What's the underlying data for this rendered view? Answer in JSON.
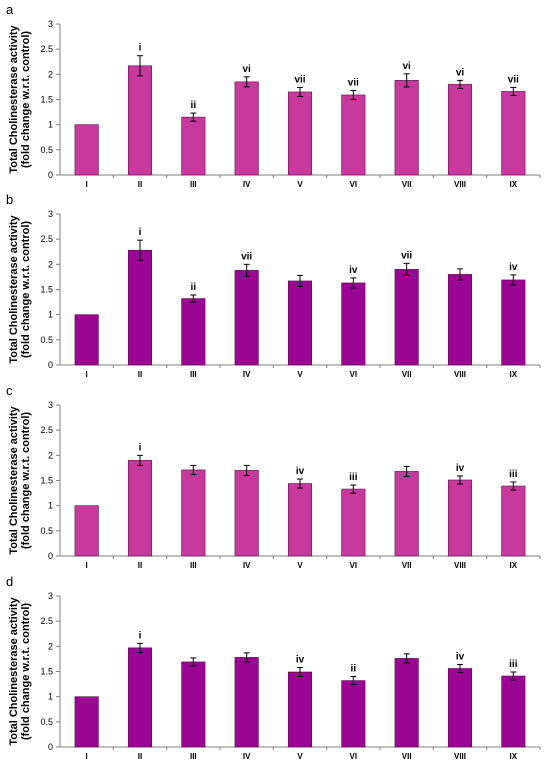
{
  "chart_data": [
    {
      "panel": "a",
      "type": "bar",
      "color": "#c8399d",
      "ylabel_lines": [
        "Total Cholinesterase activity",
        "(fold change w.r.t. control)"
      ],
      "ylim": [
        0,
        3
      ],
      "yticks": [
        "0",
        "0.5",
        "1",
        "1.5",
        "2",
        "2.5",
        "3"
      ],
      "categories": [
        "I",
        "II",
        "III",
        "IV",
        "V",
        "VI",
        "VII",
        "VIII",
        "IX"
      ],
      "values": [
        1.0,
        2.17,
        1.15,
        1.85,
        1.65,
        1.59,
        1.88,
        1.8,
        1.66
      ],
      "errors": [
        0,
        0.2,
        0.08,
        0.1,
        0.09,
        0.09,
        0.13,
        0.08,
        0.08
      ],
      "labels": [
        "",
        "i",
        "ii",
        "vi",
        "vii",
        "vii",
        "vi",
        "vi",
        "vii"
      ]
    },
    {
      "panel": "b",
      "type": "bar",
      "color": "#9b0593",
      "ylabel_lines": [
        "Total Cholinesterase activity",
        "(fold change w.r.t. control)"
      ],
      "ylim": [
        0,
        3
      ],
      "yticks": [
        "0",
        "0.5",
        "1",
        "1.5",
        "2",
        "2.5",
        "3"
      ],
      "categories": [
        "I",
        "II",
        "III",
        "IV",
        "V",
        "VI",
        "VII",
        "VIII",
        "IX"
      ],
      "values": [
        1.0,
        2.28,
        1.32,
        1.88,
        1.67,
        1.63,
        1.9,
        1.8,
        1.69
      ],
      "errors": [
        0,
        0.2,
        0.07,
        0.12,
        0.11,
        0.1,
        0.12,
        0.11,
        0.1
      ],
      "labels": [
        "",
        "i",
        "ii",
        "vii",
        "",
        "iv",
        "vii",
        "",
        "iv"
      ]
    },
    {
      "panel": "c",
      "type": "bar",
      "color": "#c8399d",
      "ylabel_lines": [
        "Total Cholinesterase activity",
        "(fold change w.r.t. control)"
      ],
      "ylim": [
        0,
        3
      ],
      "yticks": [
        "0",
        "0.5",
        "1",
        "1.5",
        "2",
        "2.5",
        "3"
      ],
      "categories": [
        "I",
        "II",
        "III",
        "IV",
        "V",
        "VI",
        "VII",
        "VIII",
        "IX"
      ],
      "values": [
        1.0,
        1.9,
        1.71,
        1.7,
        1.44,
        1.33,
        1.68,
        1.51,
        1.39
      ],
      "errors": [
        0,
        0.1,
        0.09,
        0.1,
        0.09,
        0.08,
        0.1,
        0.08,
        0.08
      ],
      "labels": [
        "",
        "i",
        "",
        "",
        "iv",
        "iii",
        "",
        "iv",
        "iii"
      ]
    },
    {
      "panel": "d",
      "type": "bar",
      "color": "#9b0593",
      "ylabel_lines": [
        "Total Cholinesterase activity",
        "(fold change w.r.t. control)"
      ],
      "ylim": [
        0,
        3
      ],
      "yticks": [
        "0",
        "0.5",
        "1",
        "1.5",
        "2",
        "2.5",
        "3"
      ],
      "categories": [
        "I",
        "II",
        "III",
        "IV",
        "V",
        "VI",
        "VII",
        "VIII",
        "IX"
      ],
      "values": [
        1.0,
        1.97,
        1.69,
        1.78,
        1.49,
        1.32,
        1.76,
        1.56,
        1.41
      ],
      "errors": [
        0,
        0.09,
        0.08,
        0.09,
        0.09,
        0.08,
        0.09,
        0.08,
        0.08
      ],
      "labels": [
        "",
        "i",
        "",
        "",
        "iv",
        "ii",
        "",
        "iv",
        "iii"
      ]
    }
  ]
}
